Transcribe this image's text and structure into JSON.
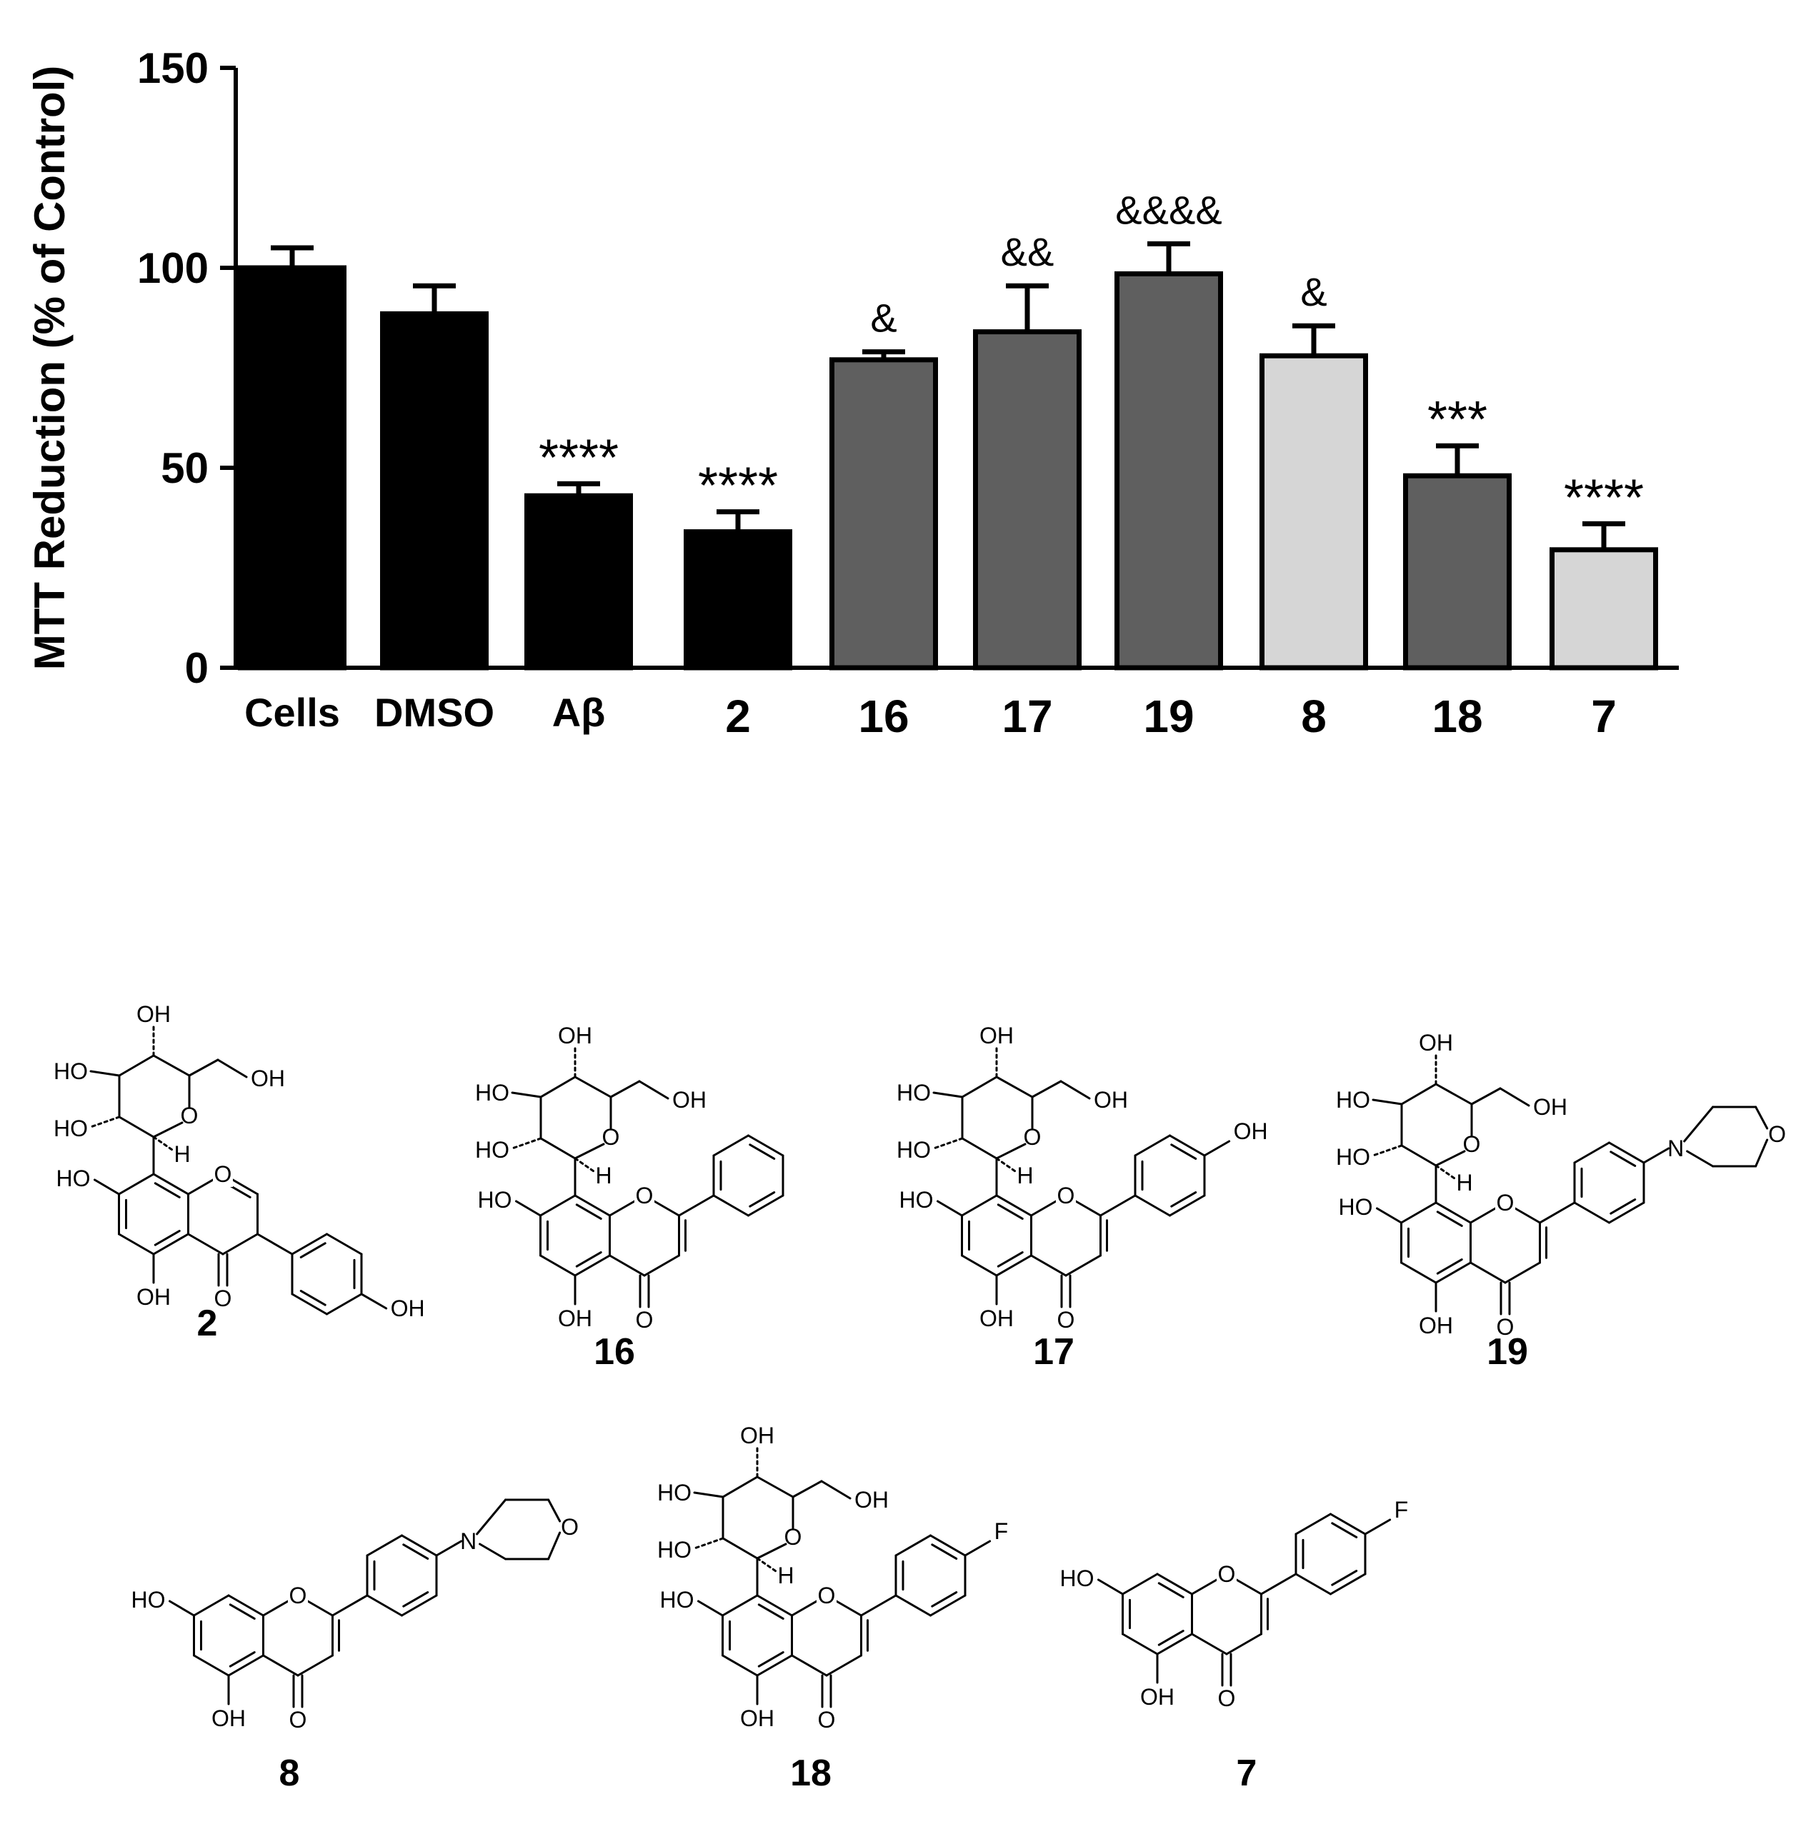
{
  "chart_data": {
    "type": "bar",
    "title": "",
    "xlabel": "",
    "ylabel": "MTT Reduction (% of Control)",
    "ylim": [
      0,
      150
    ],
    "yticks": [
      "0",
      "50",
      "100",
      "150"
    ],
    "grid": false,
    "legend": "none",
    "categories": [
      "Cells",
      "DMSO",
      "Aβ",
      "2",
      "16",
      "17",
      "19",
      "8",
      "18",
      "7"
    ],
    "values": [
      100,
      88.5,
      43,
      34,
      77,
      84,
      98.5,
      78,
      48,
      29.5
    ],
    "errors": [
      5,
      7,
      3,
      5,
      2,
      11.5,
      7.5,
      7.5,
      7.5,
      6.5
    ],
    "annotations": [
      "",
      "",
      "****",
      "****",
      "&",
      "&&",
      "&&&&",
      "&",
      "***",
      "****"
    ],
    "bar_colors": [
      "#000000",
      "#000000",
      "#000000",
      "#000000",
      "#5f5f5f",
      "#5f5f5f",
      "#5f5f5f",
      "#d6d6d6",
      "#5f5f5f",
      "#d6d6d6"
    ]
  },
  "structures": [
    {
      "label": "2",
      "atoms": [
        "OH",
        "HO",
        "OH",
        "HO",
        "O",
        "H",
        "HO",
        "O",
        "OH",
        "O",
        "OH"
      ]
    },
    {
      "label": "16",
      "atoms": [
        "OH",
        "HO",
        "OH",
        "HO",
        "O",
        "H",
        "HO",
        "O",
        "OH",
        "O"
      ]
    },
    {
      "label": "17",
      "atoms": [
        "OH",
        "HO",
        "OH",
        "HO",
        "O",
        "H",
        "HO",
        "O",
        "OH",
        "OH",
        "O"
      ]
    },
    {
      "label": "19",
      "atoms": [
        "OH",
        "HO",
        "OH",
        "HO",
        "O",
        "H",
        "HO",
        "O",
        "OH",
        "O",
        "N",
        "O"
      ]
    },
    {
      "label": "8",
      "atoms": [
        "HO",
        "O",
        "OH",
        "O",
        "N",
        "O"
      ]
    },
    {
      "label": "18",
      "atoms": [
        "OH",
        "HO",
        "OH",
        "HO",
        "O",
        "H",
        "HO",
        "O",
        "OH",
        "O",
        "F"
      ]
    },
    {
      "label": "7",
      "atoms": [
        "HO",
        "O",
        "OH",
        "O",
        "F"
      ]
    }
  ]
}
